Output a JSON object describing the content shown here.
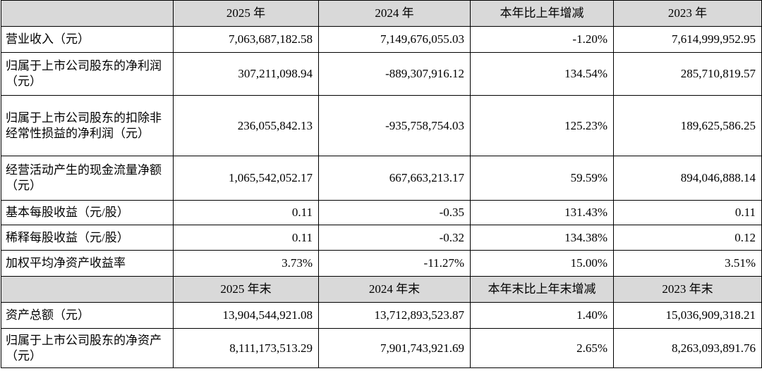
{
  "table": {
    "header": [
      "2025 年",
      "2024 年",
      "本年比上年增减",
      "2023 年"
    ],
    "rows": [
      [
        "营业收入（元）",
        "7,063,687,182.58",
        "7,149,676,055.03",
        "-1.20%",
        "7,614,999,952.95"
      ],
      [
        "归属于上市公司股东的净利润（元）",
        "307,211,098.94",
        "-889,307,916.12",
        "134.54%",
        "285,710,819.57"
      ],
      [
        "归属于上市公司股东的扣除非经常性损益的净利润（元）",
        "236,055,842.13",
        "-935,758,754.03",
        "125.23%",
        "189,625,586.25"
      ],
      [
        "经营活动产生的现金流量净额（元）",
        "1,065,542,052.17",
        "667,663,213.17",
        "59.59%",
        "894,046,888.14"
      ],
      [
        "基本每股收益（元/股）",
        "0.11",
        "-0.35",
        "131.43%",
        "0.11"
      ],
      [
        "稀释每股收益（元/股）",
        "0.11",
        "-0.32",
        "134.38%",
        "0.12"
      ],
      [
        "加权平均净资产收益率",
        "3.73%",
        "-11.27%",
        "15.00%",
        "3.51%"
      ]
    ],
    "header2": [
      "2025 年末",
      "2024 年末",
      "本年末比上年末增减",
      "2023 年末"
    ],
    "rows2": [
      [
        "资产总额（元）",
        "13,904,544,921.08",
        "13,712,893,523.87",
        "1.40%",
        "15,036,909,318.21"
      ],
      [
        "归属于上市公司股东的净资产（元）",
        "8,111,173,513.29",
        "7,901,743,921.69",
        "2.65%",
        "8,263,093,891.76"
      ]
    ]
  }
}
